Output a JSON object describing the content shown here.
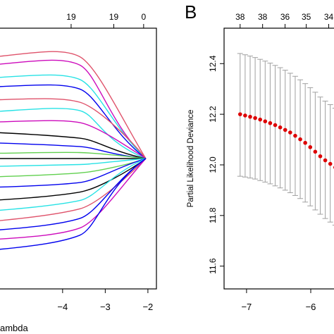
{
  "panel_labels": {
    "right": "B"
  },
  "chart_data": [
    {
      "type": "line",
      "title": "",
      "xlabel": "Log Lambda",
      "xlabel_visible_fragment": "ambda",
      "x_ticks": [
        -4,
        -3,
        -2
      ],
      "x_tick_labels": [
        "−4",
        "−3",
        "−2"
      ],
      "top_ticks": [
        {
          "x": -3.8,
          "label": "19"
        },
        {
          "x": -2.8,
          "label": "19"
        },
        {
          "x": -2.1,
          "label": "0"
        }
      ],
      "xlim": [
        -5.6,
        -1.8
      ],
      "ylim": [
        -1,
        1
      ],
      "converge_x": -2.05,
      "series_colors": [
        "#000000",
        "#df536b",
        "#61d04f",
        "#2297e6",
        "#28e2e5",
        "#cd0bbc",
        "#0000ee"
      ],
      "series": [
        {
          "color": "#df536b",
          "start": 0.78,
          "mid": 0.85,
          "knot": -2.6
        },
        {
          "color": "#cd0bbc",
          "start": 0.72,
          "mid": 0.78,
          "knot": -2.9
        },
        {
          "color": "#28e2e5",
          "start": 0.62,
          "mid": 0.66,
          "knot": -2.8
        },
        {
          "color": "#0000ee",
          "start": 0.55,
          "mid": 0.58,
          "knot": -2.85
        },
        {
          "color": "#df536b",
          "start": 0.45,
          "mid": 0.47,
          "knot": -2.45
        },
        {
          "color": "#28e2e5",
          "start": 0.36,
          "mid": 0.4,
          "knot": -3.1
        },
        {
          "color": "#cd0bbc",
          "start": 0.28,
          "mid": 0.3,
          "knot": -2.55
        },
        {
          "color": "#000000",
          "start": 0.2,
          "mid": 0.17,
          "knot": -2.9
        },
        {
          "color": "#0000ee",
          "start": 0.12,
          "mid": 0.1,
          "knot": -3.0
        },
        {
          "color": "#61d04f",
          "start": 0.04,
          "mid": 0.05,
          "knot": -2.5
        },
        {
          "color": "#000000",
          "start": 0.0,
          "mid": 0.0,
          "knot": -2.85
        },
        {
          "color": "#28e2e5",
          "start": -0.06,
          "mid": -0.05,
          "knot": -2.7
        },
        {
          "color": "#61d04f",
          "start": -0.14,
          "mid": -0.12,
          "knot": -2.4
        },
        {
          "color": "#0000ee",
          "start": -0.22,
          "mid": -0.2,
          "knot": -2.75
        },
        {
          "color": "#000000",
          "start": -0.32,
          "mid": -0.28,
          "knot": -2.45
        },
        {
          "color": "#28e2e5",
          "start": -0.4,
          "mid": -0.35,
          "knot": -2.9
        },
        {
          "color": "#df536b",
          "start": -0.48,
          "mid": -0.42,
          "knot": -2.5
        },
        {
          "color": "#0000ee",
          "start": -0.55,
          "mid": -0.5,
          "knot": -2.8
        },
        {
          "color": "#cd0bbc",
          "start": -0.62,
          "mid": -0.58,
          "knot": -2.6
        },
        {
          "color": "#0000ee",
          "start": -0.7,
          "mid": -0.64,
          "knot": -3.0
        }
      ]
    },
    {
      "type": "scatter",
      "title": "",
      "ylabel": "Partial Likelihood Deviance",
      "xlabel": "",
      "x_ticks": [
        -7,
        -6
      ],
      "x_tick_labels": [
        "−7",
        "−6"
      ],
      "y_ticks": [
        11.6,
        11.8,
        12.0,
        12.2,
        12.4
      ],
      "y_tick_labels": [
        "11.6",
        "11.8",
        "12.0",
        "12.2",
        "12.4"
      ],
      "top_ticks": [
        {
          "x": -7.1,
          "label": "38"
        },
        {
          "x": -6.75,
          "label": "38"
        },
        {
          "x": -6.4,
          "label": "36"
        },
        {
          "x": -6.07,
          "label": "35"
        },
        {
          "x": -5.72,
          "label": "34"
        }
      ],
      "xlim": [
        -7.35,
        -5.55
      ],
      "ylim": [
        11.51,
        12.54
      ],
      "point_color": "#dd0000",
      "bar_color": "#a0a0a0",
      "x": [
        -7.1,
        -7.022,
        -6.944,
        -6.866,
        -6.788,
        -6.71,
        -6.632,
        -6.554,
        -6.476,
        -6.398,
        -6.32,
        -6.242,
        -6.164,
        -6.086,
        -6.008,
        -5.93,
        -5.852,
        -5.774,
        -5.696,
        -5.618
      ],
      "y": [
        12.2,
        12.195,
        12.19,
        12.185,
        12.179,
        12.172,
        12.165,
        12.157,
        12.148,
        12.138,
        12.128,
        12.115,
        12.101,
        12.087,
        12.07,
        12.052,
        12.034,
        12.018,
        12.004,
        11.99
      ],
      "upper": [
        12.44,
        12.435,
        12.43,
        12.424,
        12.417,
        12.41,
        12.402,
        12.393,
        12.384,
        12.374,
        12.362,
        12.35,
        12.336,
        12.321,
        12.305,
        12.287,
        12.268,
        12.252,
        12.238,
        12.224
      ],
      "lower": [
        11.955,
        11.952,
        11.948,
        11.944,
        11.938,
        11.932,
        11.925,
        11.917,
        11.909,
        11.9,
        11.89,
        11.879,
        11.867,
        11.853,
        11.838,
        11.822,
        11.805,
        11.788,
        11.774,
        11.762
      ]
    }
  ]
}
